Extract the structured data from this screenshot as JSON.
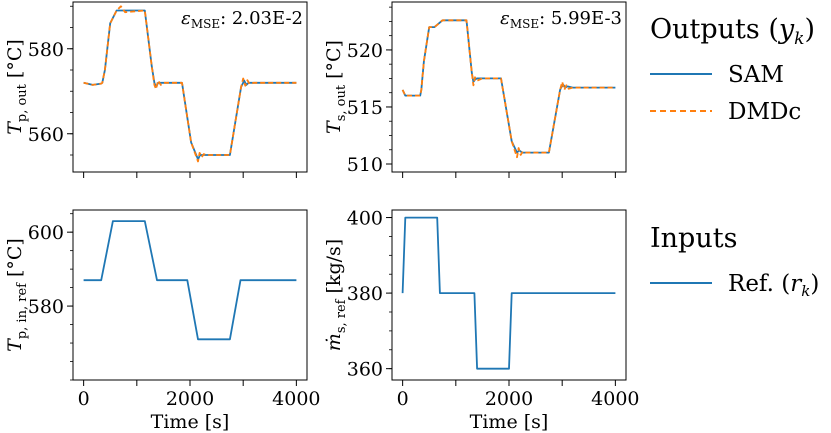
{
  "chart_data": [
    {
      "type": "line",
      "id": "tp-out",
      "ylabel_main": "T",
      "ylabel_sub": "p, out",
      "ylabel_unit": "[°C]",
      "annotation_symbol": "ε",
      "annotation_sub": "MSE",
      "annotation_value": ": 2.03E-2",
      "xlim": [
        -200,
        4200
      ],
      "ylim": [
        551,
        591
      ],
      "yticks": [
        560,
        580
      ],
      "xticks": [
        0,
        1000,
        2000,
        3000,
        4000
      ],
      "show_xticklabels": false,
      "series": [
        {
          "name": "SAM",
          "x": [
            0,
            170,
            330,
            350,
            400,
            500,
            620,
            1150,
            1280,
            1330,
            1360,
            1400,
            1500,
            1850,
            2020,
            2150,
            2190,
            2250,
            2300,
            2750,
            2960,
            3020,
            3060,
            3100,
            3200,
            4000
          ],
          "y": [
            572,
            571.5,
            571.8,
            572,
            575,
            586,
            589,
            589,
            576,
            572,
            571,
            572,
            572,
            572,
            558,
            554,
            555,
            555,
            555,
            555,
            571,
            572.5,
            571.5,
            572,
            572,
            572
          ]
        },
        {
          "name": "DMDc",
          "x": [
            0,
            170,
            330,
            350,
            400,
            500,
            620,
            700,
            780,
            1150,
            1280,
            1330,
            1360,
            1400,
            1450,
            1500,
            1850,
            2020,
            2150,
            2180,
            2220,
            2260,
            2300,
            2750,
            2960,
            3000,
            3040,
            3080,
            3120,
            3200,
            4000
          ],
          "y": [
            572,
            571.5,
            571.8,
            572,
            575,
            586,
            589,
            590,
            588.6,
            589,
            576,
            571.5,
            570.5,
            572.5,
            571.5,
            572,
            572,
            558,
            553.5,
            555.5,
            554.5,
            555.2,
            555,
            555,
            571,
            573,
            571.3,
            572.6,
            571.7,
            572,
            572
          ]
        }
      ]
    },
    {
      "type": "line",
      "id": "ts-out",
      "ylabel_main": "T",
      "ylabel_sub": "s, out",
      "ylabel_unit": "[°C]",
      "annotation_symbol": "ε",
      "annotation_sub": "MSE",
      "annotation_value": ": 5.99E-3",
      "xlim": [
        -200,
        4200
      ],
      "ylim": [
        509.3,
        524.2
      ],
      "yticks": [
        510,
        515,
        520
      ],
      "xticks": [
        0,
        1000,
        2000,
        3000,
        4000
      ],
      "show_xticklabels": false,
      "series": [
        {
          "name": "SAM",
          "x": [
            0,
            50,
            330,
            350,
            400,
            500,
            600,
            750,
            1200,
            1300,
            1330,
            1360,
            1400,
            1500,
            1850,
            2050,
            2150,
            2190,
            2250,
            2300,
            2750,
            2960,
            3010,
            3060,
            3100,
            3200,
            4000
          ],
          "y": [
            516.5,
            516,
            516,
            516.5,
            519,
            522,
            522,
            522.6,
            522.6,
            518,
            517.2,
            517.4,
            517.5,
            517.5,
            517.5,
            512,
            511,
            511.2,
            511,
            511,
            511,
            516.5,
            517,
            516.7,
            516.8,
            516.7,
            516.7
          ]
        },
        {
          "name": "DMDc",
          "x": [
            0,
            50,
            330,
            350,
            400,
            500,
            600,
            750,
            1200,
            1300,
            1330,
            1360,
            1400,
            1500,
            1850,
            2050,
            2150,
            2180,
            2220,
            2260,
            2300,
            2750,
            2960,
            3000,
            3040,
            3080,
            3120,
            3200,
            4000
          ],
          "y": [
            516.5,
            516,
            516,
            516.5,
            519,
            522,
            522,
            522.6,
            522.6,
            518,
            516.9,
            517.6,
            517.3,
            517.5,
            517.5,
            512,
            510.6,
            511.4,
            510.8,
            511.1,
            511,
            511,
            516.5,
            517.2,
            516.5,
            516.9,
            516.6,
            516.7,
            516.7
          ]
        }
      ]
    },
    {
      "type": "line",
      "id": "tp-in-ref",
      "ylabel_main": "T",
      "ylabel_sub": "p, in, ref",
      "ylabel_unit": "[°C]",
      "xlim": [
        -200,
        4200
      ],
      "ylim": [
        560,
        606
      ],
      "yticks": [
        580,
        600
      ],
      "xticks": [
        0,
        1000,
        2000,
        3000,
        4000
      ],
      "xtick_labels": [
        "0",
        "",
        "2000",
        "",
        "4000"
      ],
      "show_xticklabels": true,
      "xlabel": "Time [s]",
      "series": [
        {
          "name": "Ref.",
          "x": [
            0,
            330,
            550,
            1150,
            1380,
            1950,
            2150,
            2750,
            2950,
            4000
          ],
          "y": [
            587,
            587,
            603,
            603,
            587,
            587,
            571,
            571,
            587,
            587
          ]
        }
      ]
    },
    {
      "type": "line",
      "id": "ms-ref",
      "ylabel_main": "ṁ",
      "ylabel_sub": "s, ref",
      "ylabel_unit": "[kg/s]",
      "xlim": [
        -200,
        4200
      ],
      "ylim": [
        357,
        402
      ],
      "yticks": [
        360,
        380,
        400
      ],
      "xticks": [
        0,
        1000,
        2000,
        3000,
        4000
      ],
      "xtick_labels": [
        "0",
        "",
        "2000",
        "",
        "4000"
      ],
      "show_xticklabels": true,
      "xlabel": "Time [s]",
      "series": [
        {
          "name": "Ref.",
          "x": [
            0,
            50,
            650,
            700,
            1350,
            1400,
            2000,
            2050,
            4000
          ],
          "y": [
            380,
            400,
            400,
            380,
            380,
            360,
            360,
            380,
            380
          ]
        }
      ]
    }
  ],
  "legend": {
    "outputs_title": "Outputs",
    "outputs_title_sym": "y",
    "outputs_title_sub": "k",
    "outputs_items": [
      "SAM",
      "DMDc"
    ],
    "inputs_title": "Inputs",
    "inputs_items_prefix": "Ref.",
    "inputs_items_sym": "r",
    "inputs_items_sub": "k"
  },
  "colors": {
    "SAM": "#1f77b4",
    "DMDc": "#ff7f0e",
    "Ref.": "#1f77b4"
  }
}
